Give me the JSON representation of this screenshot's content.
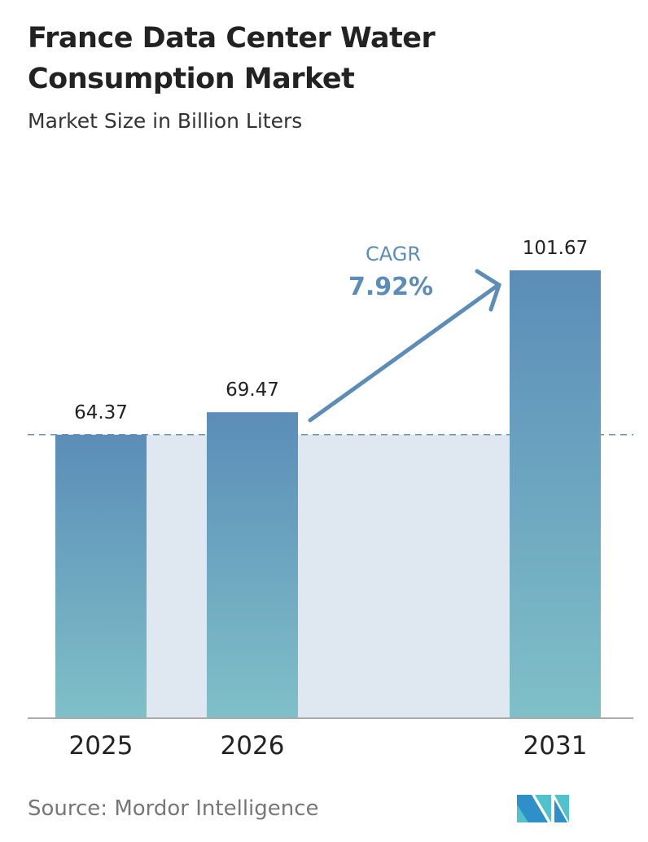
{
  "title": "France Data Center Water Consumption Market",
  "subtitle": "Market Size in Billion Liters",
  "source": "Source:  Mordor Intelligence",
  "logo_text": "Mordor Intelligence",
  "chart_data": {
    "type": "bar",
    "title": "France Data Center Water Consumption Market",
    "subtitle": "Market Size in Billion Liters",
    "categories": [
      "2025",
      "2026",
      "2031"
    ],
    "values": [
      64.37,
      69.47,
      101.67
    ],
    "value_labels": [
      "64.37",
      "69.47",
      "101.67"
    ],
    "ylim": [
      0,
      101.67
    ],
    "grid": false,
    "reference_line": 64.37,
    "annotation": {
      "label": "CAGR",
      "value": "7.92%"
    },
    "colors": {
      "bar_top": "#5b8db8",
      "bar_bottom": "#7fc0c8",
      "shade": "#dfe8f0",
      "annotation": "#5b8db8",
      "dashed": "#6e93ad"
    }
  }
}
